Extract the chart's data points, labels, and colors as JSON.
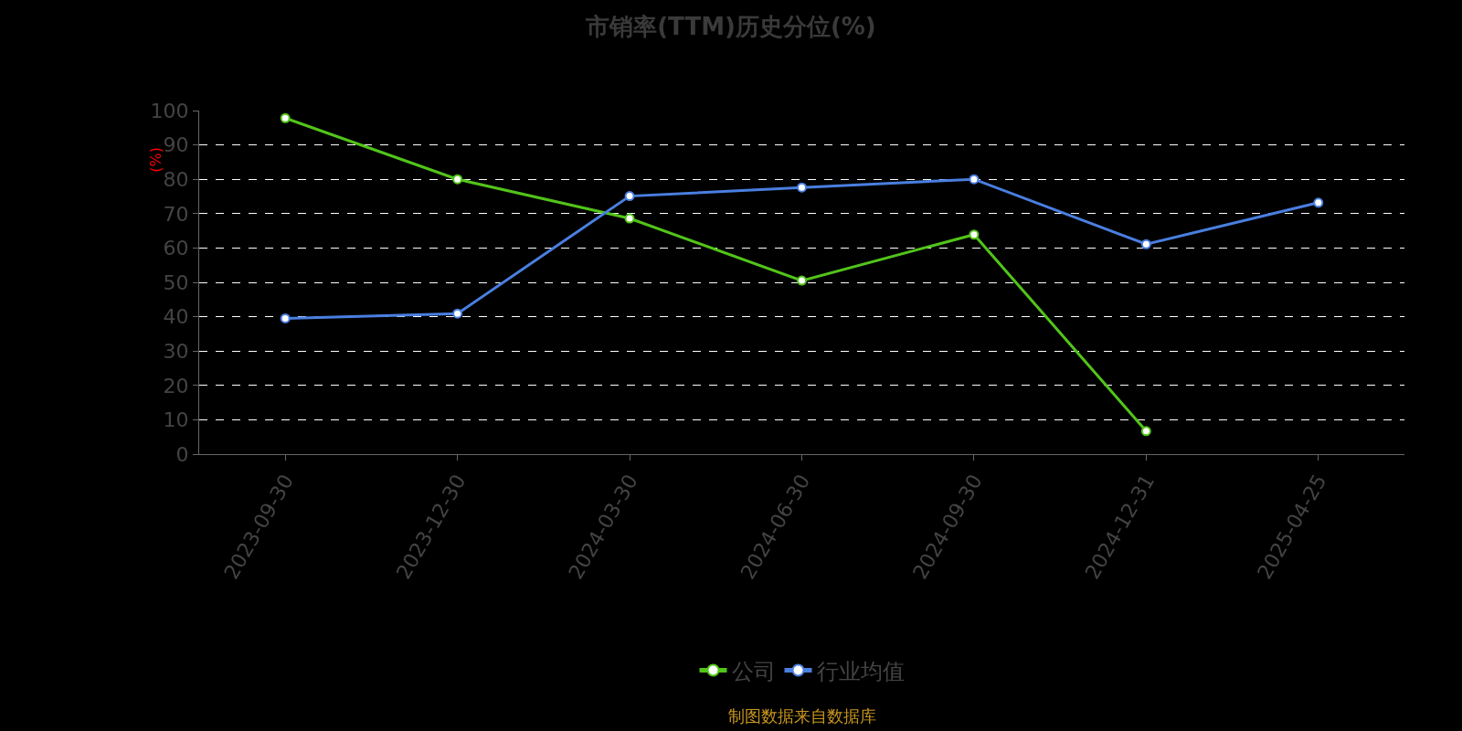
{
  "chart_data": {
    "type": "line",
    "title": "市销率(TTM)历史分位(%)",
    "ylabel": "(%)",
    "categories": [
      "2023-09-30",
      "2023-12-30",
      "2024-03-30",
      "2024-06-30",
      "2024-09-30",
      "2024-12-31",
      "2025-04-25"
    ],
    "series": [
      {
        "name": "公司",
        "color": "#52c41a",
        "values": [
          97.8,
          80.0,
          68.6,
          50.5,
          63.9,
          6.7,
          null
        ]
      },
      {
        "name": "行业均值",
        "color": "#4a7fe0",
        "values": [
          39.5,
          40.9,
          75.1,
          77.6,
          80.0,
          61.1,
          73.2
        ]
      }
    ],
    "ylim": [
      0,
      100
    ],
    "yticks": [
      0,
      10,
      20,
      30,
      40,
      50,
      60,
      70,
      80,
      90,
      100
    ],
    "grid": "y",
    "legend": "bottom",
    "marker": "circle",
    "line_style": "solid",
    "annotations": [
      "制图数据来自数据库"
    ]
  }
}
